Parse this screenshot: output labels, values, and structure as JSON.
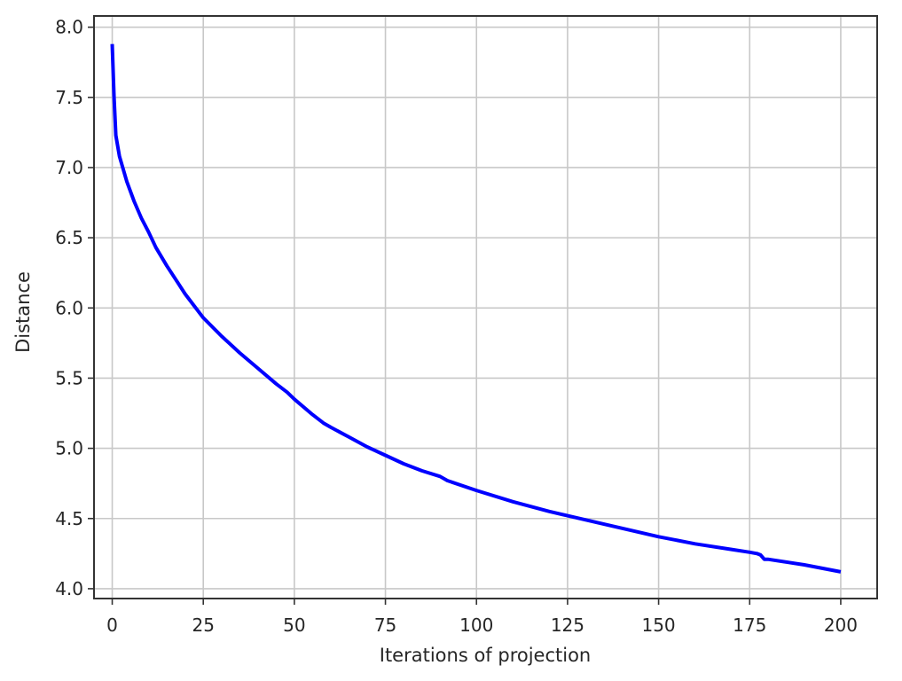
{
  "chart_data": {
    "type": "line",
    "title": "",
    "xlabel": "Iterations of projection",
    "ylabel": "Distance",
    "xlim": [
      -5,
      210
    ],
    "ylim": [
      3.93,
      8.08
    ],
    "x_ticks": [
      0,
      25,
      50,
      75,
      100,
      125,
      150,
      175,
      200
    ],
    "y_ticks": [
      4.0,
      4.5,
      5.0,
      5.5,
      6.0,
      6.5,
      7.0,
      7.5,
      8.0
    ],
    "grid": true,
    "colors": {
      "line": "#0000ff",
      "grid": "#c8c8c8",
      "axes": "#333333"
    },
    "series": [
      {
        "x": [
          0,
          0.5,
          1,
          2,
          4,
          6,
          8,
          10,
          12,
          15,
          18,
          20,
          25,
          30,
          35,
          40,
          45,
          48,
          50,
          55,
          58,
          60,
          65,
          70,
          75,
          80,
          85,
          90,
          92,
          100,
          110,
          120,
          125,
          130,
          140,
          150,
          160,
          170,
          175,
          177,
          178,
          179,
          180,
          190,
          200
        ],
        "y": [
          7.88,
          7.5,
          7.23,
          7.08,
          6.9,
          6.76,
          6.64,
          6.54,
          6.43,
          6.3,
          6.18,
          6.1,
          5.93,
          5.8,
          5.68,
          5.57,
          5.46,
          5.4,
          5.35,
          5.24,
          5.18,
          5.15,
          5.08,
          5.01,
          4.95,
          4.89,
          4.84,
          4.8,
          4.77,
          4.7,
          4.62,
          4.55,
          4.52,
          4.49,
          4.43,
          4.37,
          4.32,
          4.28,
          4.26,
          4.25,
          4.24,
          4.21,
          4.21,
          4.17,
          4.12
        ]
      }
    ]
  }
}
